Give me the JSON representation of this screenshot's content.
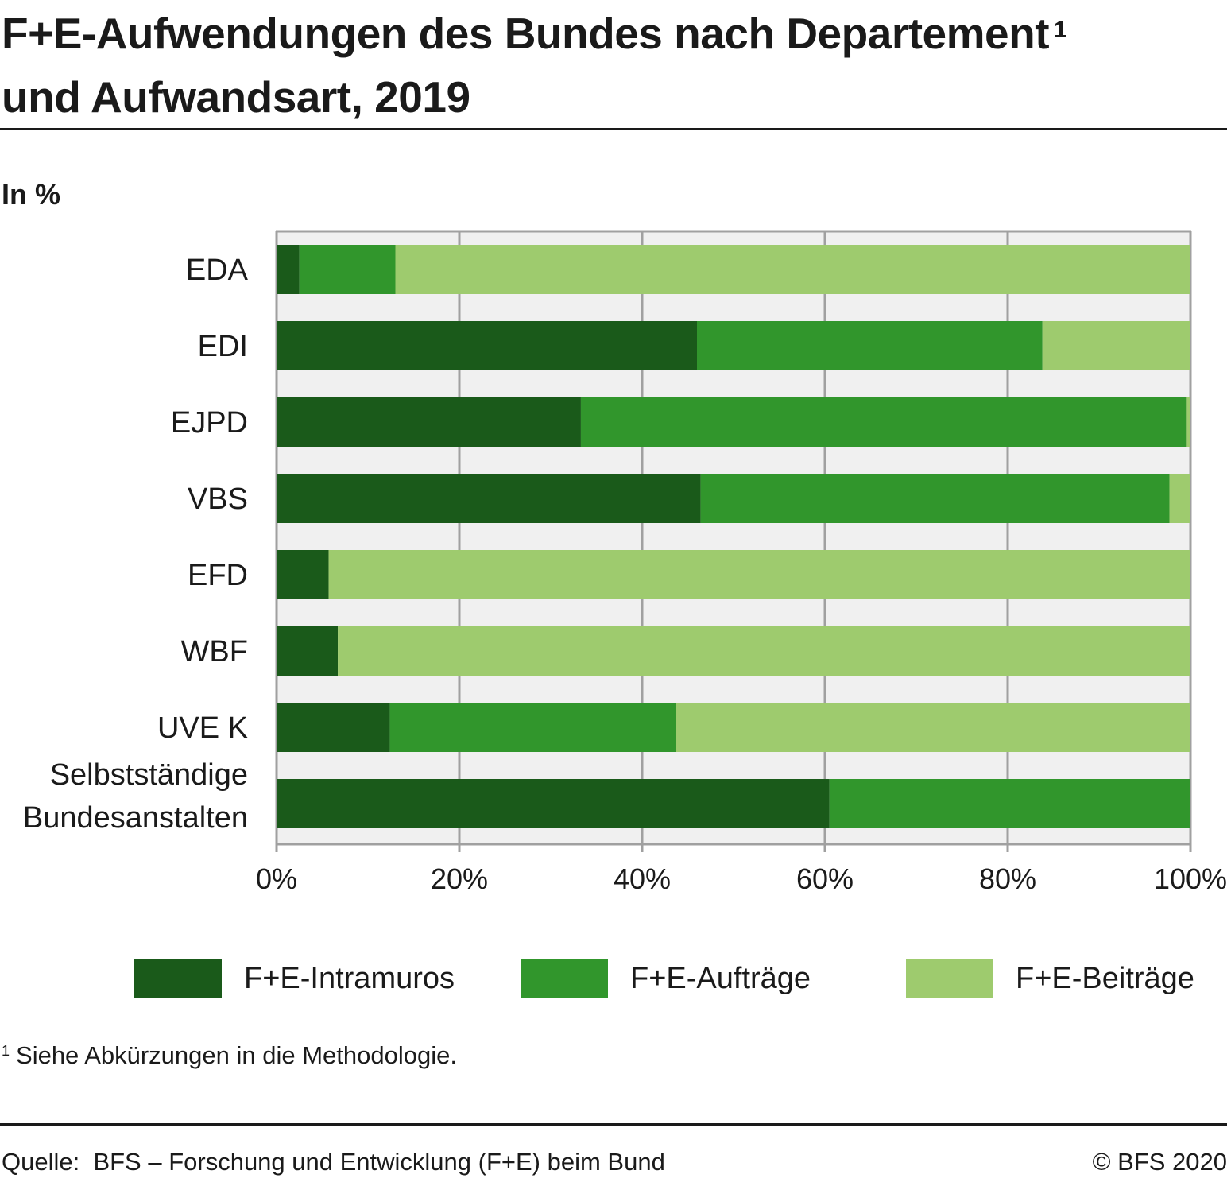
{
  "header": {
    "title_line1": "F+E-Aufwendungen des Bundes nach Departement",
    "title_footnote_mark": "1",
    "title_line2": "und Aufwandsart, 2019",
    "unit_label": "In %"
  },
  "colors": {
    "intramuros": "#1a5a1a",
    "auftraege": "#31962c",
    "beitraege": "#9ecb6e",
    "plot_background": "#f0f0f0",
    "gridline": "#a0a0a0"
  },
  "chart_data": {
    "type": "bar",
    "orientation": "horizontal",
    "stacked": true,
    "title": "F+E-Aufwendungen des Bundes nach Departement und Aufwandsart, 2019",
    "xlabel": "",
    "ylabel": "In %",
    "xlim": [
      0,
      100
    ],
    "x_ticks": [
      0,
      20,
      40,
      60,
      80,
      100
    ],
    "x_tick_labels": [
      "0%",
      "20%",
      "40%",
      "60%",
      "80%",
      "100%"
    ],
    "grid": true,
    "legend_position": "bottom",
    "categories": [
      "EDA",
      "EDI",
      "EJPD",
      "VBS",
      "EFD",
      "WBF",
      "UVE K",
      "Selbstständige Bundesanstalten"
    ],
    "category_label_lines": [
      [
        "EDA"
      ],
      [
        "EDI"
      ],
      [
        "EJPD"
      ],
      [
        "VBS"
      ],
      [
        "EFD"
      ],
      [
        "WBF"
      ],
      [
        "UVE K"
      ],
      [
        "Selbstständige",
        "Bundesanstalten"
      ]
    ],
    "series": [
      {
        "name": "F+E-Intramuros",
        "key": "intramuros",
        "values": [
          2.5,
          46.0,
          33.3,
          46.4,
          5.7,
          6.7,
          12.4,
          60.5
        ]
      },
      {
        "name": "F+E-Aufträge",
        "key": "auftraege",
        "values": [
          10.5,
          37.8,
          66.3,
          51.3,
          0.0,
          0.0,
          31.3,
          39.5
        ]
      },
      {
        "name": "F+E-Beiträge",
        "key": "beitraege",
        "values": [
          87.0,
          16.2,
          0.4,
          2.3,
          94.3,
          93.3,
          56.3,
          0.0
        ]
      }
    ]
  },
  "footnote": {
    "mark": "1",
    "text": "Siehe Abkürzungen in die Methodologie."
  },
  "footer": {
    "source": "Quelle:  BFS – Forschung und Entwicklung (F+E) beim Bund",
    "copyright": "© BFS 2020"
  }
}
